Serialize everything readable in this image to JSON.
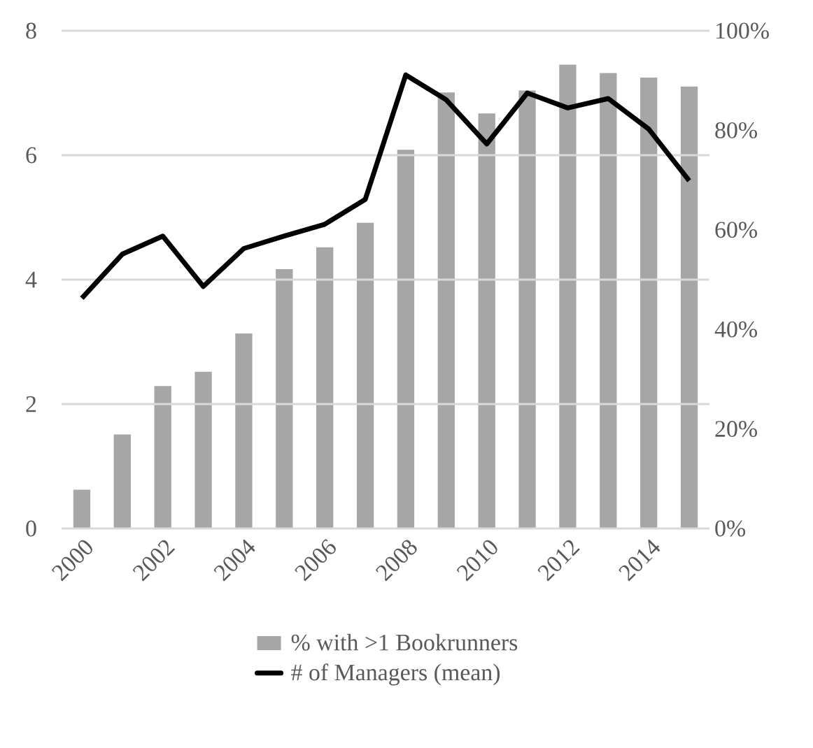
{
  "chart_data": {
    "type": "bar",
    "categories": [
      "2000",
      null,
      "2002",
      null,
      "2004",
      null,
      "2006",
      null,
      "2008",
      null,
      "2010",
      null,
      "2012",
      null,
      "2014",
      null
    ],
    "series": [
      {
        "name": "% with >1 Bookrunners",
        "axis": "y2",
        "color": "#a6a6a6",
        "values": [
          7.8,
          18.9,
          28.6,
          31.5,
          39.2,
          52.1,
          56.5,
          61.4,
          76.1,
          87.6,
          83.4,
          88,
          93.2,
          91.5,
          90.6,
          88.8
        ]
      },
      {
        "name": "# of Managers (mean)",
        "type": "line",
        "color": "#000000",
        "values": [
          3.7,
          4.41,
          4.7,
          3.89,
          4.5,
          4.7,
          4.89,
          5.29,
          7.29,
          6.89,
          6.18,
          7.0,
          6.76,
          6.91,
          6.42,
          5.59
        ]
      }
    ],
    "ylim": [
      0,
      8
    ],
    "yticks": [
      0,
      2,
      4,
      6,
      8
    ],
    "y2lim": [
      0,
      100
    ],
    "y2ticks": [
      {
        "value": 0,
        "label": "0%"
      },
      {
        "value": 20,
        "label": "20%"
      },
      {
        "value": 40,
        "label": "40%"
      },
      {
        "value": 60,
        "label": "60%"
      },
      {
        "value": 80,
        "label": "80%"
      },
      {
        "value": 100,
        "label": "100%"
      }
    ],
    "grid": "y",
    "legend": "bottom",
    "marker": "none",
    "line_style": "solid"
  }
}
